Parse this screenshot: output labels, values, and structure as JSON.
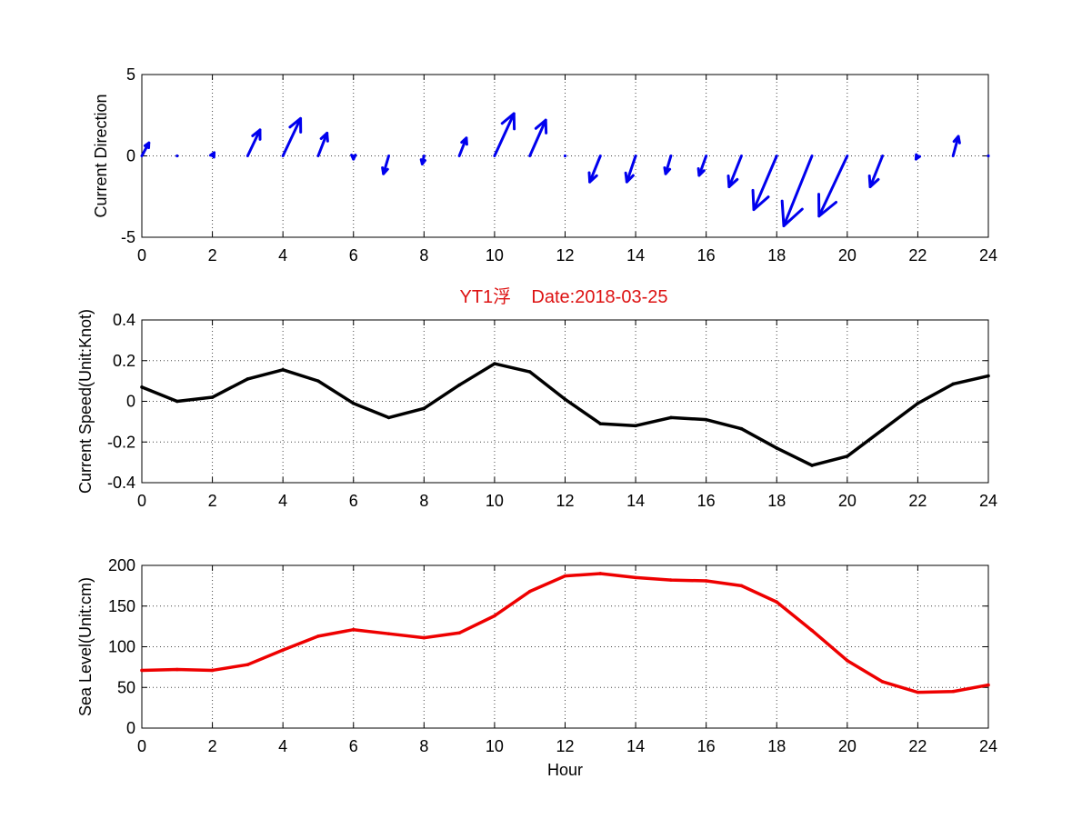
{
  "figure_title": "YT1浮    Date:2018-03-25",
  "colors": {
    "title": "#dd1111",
    "quiver": "#0000ee",
    "speed_line": "#000000",
    "sea_level_line": "#ee0000",
    "grid": "#444444"
  },
  "chart_data": [
    {
      "type": "quiver",
      "ylabel": "Current Direction",
      "xlim": [
        0,
        24
      ],
      "ylim": [
        -5,
        5
      ],
      "xticks": [
        "0",
        "2",
        "4",
        "6",
        "8",
        "10",
        "12",
        "14",
        "16",
        "18",
        "20",
        "22",
        "24"
      ],
      "yticks": [
        "5",
        "0",
        "-5"
      ],
      "grid": true,
      "x": [
        0,
        1,
        2,
        3,
        4,
        5,
        6,
        7,
        8,
        9,
        10,
        11,
        12,
        13,
        14,
        15,
        16,
        17,
        18,
        19,
        20,
        21,
        22,
        23,
        24
      ],
      "u": [
        0.2,
        0,
        0.05,
        0.35,
        0.5,
        0.25,
        0,
        -0.15,
        -0.05,
        0.2,
        0.55,
        0.45,
        0,
        -0.3,
        -0.25,
        -0.15,
        -0.2,
        -0.35,
        -0.65,
        -0.8,
        -0.8,
        -0.35,
        -0.05,
        0.15,
        0
      ],
      "v": [
        0.8,
        0,
        0.2,
        1.6,
        2.3,
        1.4,
        -0.2,
        -1.1,
        -0.5,
        1.1,
        2.6,
        2.2,
        0,
        -1.6,
        -1.6,
        -1.1,
        -1.2,
        -1.9,
        -3.3,
        -4.3,
        -3.7,
        -1.9,
        -0.2,
        1.2,
        0
      ]
    },
    {
      "type": "line",
      "title": "YT1浮    Date:2018-03-25",
      "ylabel": "Current Speed(Unit:Knot)",
      "xlim": [
        0,
        24
      ],
      "ylim": [
        -0.4,
        0.4
      ],
      "xticks": [
        "0",
        "2",
        "4",
        "6",
        "8",
        "10",
        "12",
        "14",
        "16",
        "18",
        "20",
        "22",
        "24"
      ],
      "yticks": [
        "0.4",
        "0.2",
        "0",
        "-0.2",
        "-0.4"
      ],
      "grid": true,
      "x": [
        0,
        1,
        2,
        3,
        4,
        5,
        6,
        7,
        8,
        9,
        10,
        11,
        12,
        13,
        14,
        15,
        16,
        17,
        18,
        19,
        20,
        21,
        22,
        23,
        24
      ],
      "y": [
        0.07,
        0.0,
        0.02,
        0.11,
        0.155,
        0.1,
        -0.01,
        -0.08,
        -0.035,
        0.08,
        0.185,
        0.145,
        0.01,
        -0.11,
        -0.12,
        -0.08,
        -0.09,
        -0.135,
        -0.23,
        -0.315,
        -0.27,
        -0.14,
        -0.01,
        0.085,
        0.125
      ]
    },
    {
      "type": "line",
      "ylabel": "Sea Level(Unit:cm)",
      "xlabel": "Hour",
      "xlim": [
        0,
        24
      ],
      "ylim": [
        0,
        200
      ],
      "xticks": [
        "0",
        "2",
        "4",
        "6",
        "8",
        "10",
        "12",
        "14",
        "16",
        "18",
        "20",
        "22",
        "24"
      ],
      "yticks": [
        "200",
        "150",
        "100",
        "50",
        "0"
      ],
      "grid": true,
      "x": [
        0,
        1,
        2,
        3,
        4,
        5,
        6,
        7,
        8,
        9,
        10,
        11,
        12,
        13,
        14,
        15,
        16,
        17,
        18,
        19,
        20,
        21,
        22,
        23,
        24
      ],
      "y": [
        71,
        72,
        71,
        78,
        96,
        113,
        121,
        116,
        111,
        117,
        138,
        168,
        187,
        190,
        185,
        182,
        181,
        175,
        155,
        120,
        83,
        57,
        44,
        45,
        53
      ]
    }
  ]
}
